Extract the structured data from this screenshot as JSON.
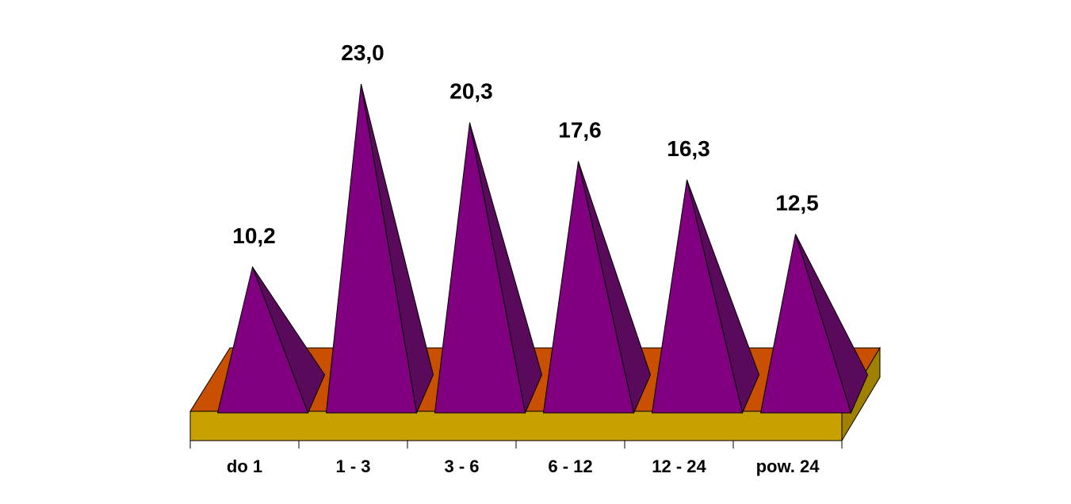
{
  "chart_data": {
    "type": "bar",
    "bar_shape": "pyramid",
    "three_d": true,
    "categories": [
      "do 1",
      "1 - 3",
      "3 - 6",
      "6 - 12",
      "12 - 24",
      "pow. 24"
    ],
    "values": [
      10.2,
      23.0,
      20.3,
      17.6,
      16.3,
      12.5
    ],
    "value_labels": [
      "10,2",
      "23,0",
      "20,3",
      "17,6",
      "16,3",
      "12,5"
    ],
    "title": "",
    "xlabel": "",
    "ylabel": "",
    "ylim": [
      0,
      23.0
    ],
    "grid": false,
    "legend": "none",
    "colors": {
      "pyramid_front": "#800080",
      "pyramid_side": "#5a0a5a",
      "floor_top": "#c85000",
      "floor_front": "#c8a000",
      "outline": "#000000"
    }
  }
}
